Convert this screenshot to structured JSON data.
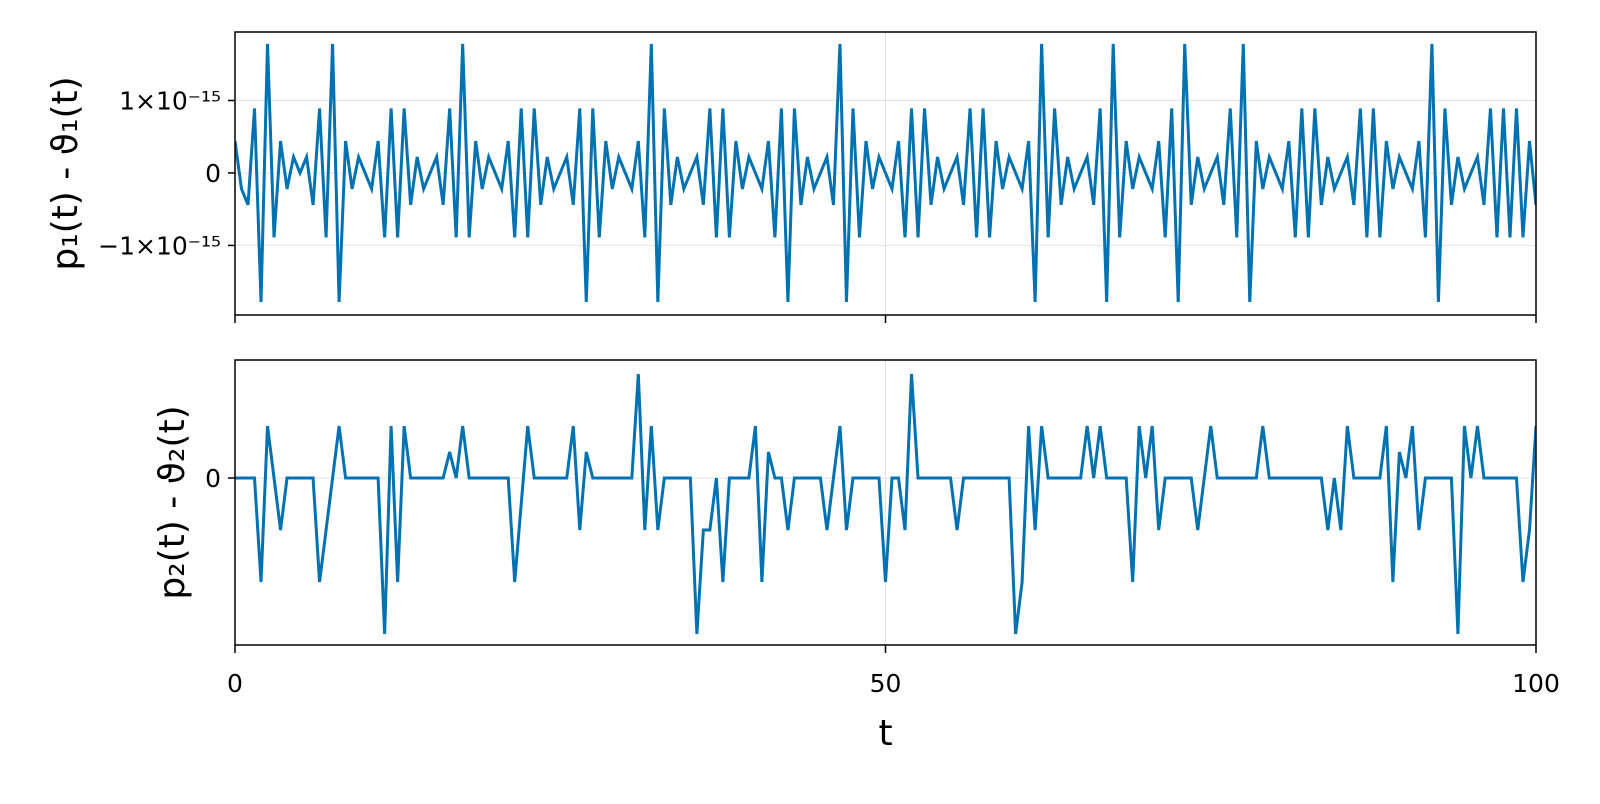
{
  "chart_data": [
    {
      "type": "line",
      "ylabel": "p₁(t) - ϑ₁(t)",
      "xlim": [
        0,
        100
      ],
      "xticks": [
        0,
        50,
        100
      ],
      "show_xtick_labels": false,
      "ylim": [
        -1.96e-15,
        1.945e-15
      ],
      "yticks": [
        {
          "value": -1e-15,
          "label": "−1×10⁻¹⁵"
        },
        0,
        {
          "value": 1e-15,
          "label": "1×10⁻¹⁵"
        }
      ],
      "grid": true,
      "x": [
        0,
        0.5,
        1,
        1.5,
        2,
        2.5,
        3,
        3.5,
        4,
        4.5,
        5,
        5.5,
        6,
        6.5,
        7,
        7.5,
        8,
        8.5,
        9,
        9.5,
        10,
        10.5,
        11,
        11.5,
        12,
        12.5,
        13,
        13.5,
        14,
        14.5,
        15,
        15.5,
        16,
        16.5,
        17,
        17.5,
        18,
        18.5,
        19,
        19.5,
        20,
        20.5,
        21,
        21.5,
        22,
        22.5,
        23,
        23.5,
        24,
        24.5,
        25,
        25.5,
        26,
        26.5,
        27,
        27.5,
        28,
        28.5,
        29,
        29.5,
        30,
        30.5,
        31,
        31.5,
        32,
        32.5,
        33,
        33.5,
        34,
        34.5,
        35,
        35.5,
        36,
        36.5,
        37,
        37.5,
        38,
        38.5,
        39,
        39.5,
        40,
        40.5,
        41,
        41.5,
        42,
        42.5,
        43,
        43.5,
        44,
        44.5,
        45,
        45.5,
        46,
        46.5,
        47,
        47.5,
        48,
        48.5,
        49,
        49.5,
        50,
        50.5,
        51,
        51.5,
        52,
        52.5,
        53,
        53.5,
        54,
        54.5,
        55,
        55.5,
        56,
        56.5,
        57,
        57.5,
        58,
        58.5,
        59,
        59.5,
        60,
        60.5,
        61,
        61.5,
        62,
        62.5,
        63,
        63.5,
        64,
        64.5,
        65,
        65.5,
        66,
        66.5,
        67,
        67.5,
        68,
        68.5,
        69,
        69.5,
        70,
        70.5,
        71,
        71.5,
        72,
        72.5,
        73,
        73.5,
        74,
        74.5,
        75,
        75.5,
        76,
        76.5,
        77,
        77.5,
        78,
        78.5,
        79,
        79.5,
        80,
        80.5,
        81,
        81.5,
        82,
        82.5,
        83,
        83.5,
        84,
        84.5,
        85,
        85.5,
        86,
        86.5,
        87,
        87.5,
        88,
        88.5,
        89,
        89.5,
        90,
        90.5,
        91,
        91.5,
        92,
        92.5,
        93,
        93.5,
        94,
        94.5,
        95,
        95.5,
        96,
        96.5,
        97,
        97.5,
        98,
        98.5,
        99,
        99.5,
        100
      ],
      "series": [
        {
          "color": "#0072b2",
          "values": [
            4.4e-16,
            -2.2e-16,
            -4.4e-16,
            8.9e-16,
            -1.78e-15,
            1.78e-15,
            -8.9e-16,
            4.4e-16,
            -2.2e-16,
            2.2e-16,
            0,
            2.2e-16,
            -4.4e-16,
            8.9e-16,
            -8.9e-16,
            1.78e-15,
            -1.78e-15,
            4.4e-16,
            -2.2e-16,
            2.2e-16,
            0,
            -2.2e-16,
            4.4e-16,
            -8.9e-16,
            8.9e-16,
            -8.9e-16,
            8.9e-16,
            -4.4e-16,
            2.2e-16,
            -2.2e-16,
            0,
            2.2e-16,
            -4.4e-16,
            8.9e-16,
            -8.9e-16,
            1.78e-15,
            -8.9e-16,
            4.4e-16,
            -2.2e-16,
            2.2e-16,
            0,
            -2.2e-16,
            4.4e-16,
            -8.9e-16,
            8.9e-16,
            -8.9e-16,
            8.9e-16,
            -4.4e-16,
            2.2e-16,
            -2.2e-16,
            0,
            2.2e-16,
            -4.4e-16,
            8.9e-16,
            -1.78e-15,
            8.9e-16,
            -8.9e-16,
            4.4e-16,
            -2.2e-16,
            2.2e-16,
            0,
            -2.2e-16,
            4.4e-16,
            -8.9e-16,
            1.78e-15,
            -1.78e-15,
            8.9e-16,
            -4.4e-16,
            2.2e-16,
            -2.2e-16,
            0,
            2.2e-16,
            -4.4e-16,
            8.9e-16,
            -8.9e-16,
            8.9e-16,
            -8.9e-16,
            4.4e-16,
            -2.2e-16,
            2.2e-16,
            0,
            -2.2e-16,
            4.4e-16,
            -8.9e-16,
            8.9e-16,
            -1.78e-15,
            8.9e-16,
            -4.4e-16,
            2.2e-16,
            -2.2e-16,
            0,
            2.2e-16,
            -4.4e-16,
            1.78e-15,
            -1.78e-15,
            8.9e-16,
            -8.9e-16,
            4.4e-16,
            -2.2e-16,
            2.2e-16,
            0,
            -2.2e-16,
            4.4e-16,
            -8.9e-16,
            8.9e-16,
            -8.9e-16,
            8.9e-16,
            -4.4e-16,
            2.2e-16,
            -2.2e-16,
            0,
            2.2e-16,
            -4.4e-16,
            8.9e-16,
            -8.9e-16,
            8.9e-16,
            -8.9e-16,
            4.4e-16,
            -2.2e-16,
            2.2e-16,
            0,
            -2.2e-16,
            4.4e-16,
            -1.78e-15,
            1.78e-15,
            -8.9e-16,
            8.9e-16,
            -4.4e-16,
            2.2e-16,
            -2.2e-16,
            0,
            2.2e-16,
            -4.4e-16,
            8.9e-16,
            -1.78e-15,
            1.78e-15,
            -8.9e-16,
            4.4e-16,
            -2.2e-16,
            2.2e-16,
            0,
            -2.2e-16,
            4.4e-16,
            -8.9e-16,
            8.9e-16,
            -1.78e-15,
            1.78e-15,
            -4.4e-16,
            2.2e-16,
            -2.2e-16,
            0,
            2.2e-16,
            -4.4e-16,
            8.9e-16,
            -8.9e-16,
            1.78e-15,
            -1.78e-15,
            4.4e-16,
            -2.2e-16,
            2.2e-16,
            0,
            -2.2e-16,
            4.4e-16,
            -8.9e-16,
            8.9e-16,
            -8.9e-16,
            8.9e-16,
            -4.4e-16,
            2.2e-16,
            -2.2e-16,
            0,
            2.2e-16,
            -4.4e-16,
            8.9e-16,
            -8.9e-16,
            8.9e-16,
            -8.9e-16,
            4.4e-16,
            -2.2e-16,
            2.2e-16,
            0,
            -2.2e-16,
            4.4e-16,
            -8.9e-16,
            1.78e-15,
            -1.78e-15,
            8.9e-16,
            -4.4e-16,
            2.2e-16,
            -2.2e-16,
            0,
            2.2e-16,
            -4.4e-16,
            8.9e-16,
            -8.9e-16,
            8.9e-16,
            -8.9e-16,
            8.9e-16,
            -8.9e-16,
            4.4e-16,
            -4.4e-16
          ]
        }
      ]
    },
    {
      "type": "line",
      "ylabel": "p₂(t) - ϑ₂(t)",
      "xlabel": "t",
      "xlim": [
        0,
        100
      ],
      "xticks": [
        0,
        50,
        100
      ],
      "show_xtick_labels": true,
      "ylim": [
        -7.13e-16,
        5.04e-16
      ],
      "yticks": [
        0
      ],
      "grid": true,
      "x": [
        0,
        0.5,
        1,
        1.5,
        2,
        2.5,
        3,
        3.5,
        4,
        4.5,
        5,
        5.5,
        6,
        6.5,
        7,
        7.5,
        8,
        8.5,
        9,
        9.5,
        10,
        10.5,
        11,
        11.5,
        12,
        12.5,
        13,
        13.5,
        14,
        14.5,
        15,
        15.5,
        16,
        16.5,
        17,
        17.5,
        18,
        18.5,
        19,
        19.5,
        20,
        20.5,
        21,
        21.5,
        22,
        22.5,
        23,
        23.5,
        24,
        24.5,
        25,
        25.5,
        26,
        26.5,
        27,
        27.5,
        28,
        28.5,
        29,
        29.5,
        30,
        30.5,
        31,
        31.5,
        32,
        32.5,
        33,
        33.5,
        34,
        34.5,
        35,
        35.5,
        36,
        36.5,
        37,
        37.5,
        38,
        38.5,
        39,
        39.5,
        40,
        40.5,
        41,
        41.5,
        42,
        42.5,
        43,
        43.5,
        44,
        44.5,
        45,
        45.5,
        46,
        46.5,
        47,
        47.5,
        48,
        48.5,
        49,
        49.5,
        50,
        50.5,
        51,
        51.5,
        52,
        52.5,
        53,
        53.5,
        54,
        54.5,
        55,
        55.5,
        56,
        56.5,
        57,
        57.5,
        58,
        58.5,
        59,
        59.5,
        60,
        60.5,
        61,
        61.5,
        62,
        62.5,
        63,
        63.5,
        64,
        64.5,
        65,
        65.5,
        66,
        66.5,
        67,
        67.5,
        68,
        68.5,
        69,
        69.5,
        70,
        70.5,
        71,
        71.5,
        72,
        72.5,
        73,
        73.5,
        74,
        74.5,
        75,
        75.5,
        76,
        76.5,
        77,
        77.5,
        78,
        78.5,
        79,
        79.5,
        80,
        80.5,
        81,
        81.5,
        82,
        82.5,
        83,
        83.5,
        84,
        84.5,
        85,
        85.5,
        86,
        86.5,
        87,
        87.5,
        88,
        88.5,
        89,
        89.5,
        90,
        90.5,
        91,
        91.5,
        92,
        92.5,
        93,
        93.5,
        94,
        94.5,
        95,
        95.5,
        96,
        96.5,
        97,
        97.5,
        98,
        98.5,
        99,
        99.5,
        100
      ],
      "series": [
        {
          "color": "#0072b2",
          "values": [
            0,
            0,
            0,
            0,
            -4.44e-16,
            2.22e-16,
            0,
            -2.22e-16,
            0,
            0,
            0,
            0,
            0,
            -4.44e-16,
            -2.22e-16,
            0,
            2.22e-16,
            0,
            0,
            0,
            0,
            0,
            0,
            -6.66e-16,
            2.22e-16,
            -4.44e-16,
            2.22e-16,
            0,
            0,
            0,
            0,
            0,
            0,
            1.11e-16,
            0,
            2.22e-16,
            0,
            0,
            0,
            0,
            0,
            0,
            0,
            -4.44e-16,
            -1.11e-16,
            2.22e-16,
            0,
            0,
            0,
            0,
            0,
            0,
            2.22e-16,
            -2.22e-16,
            1.11e-16,
            0,
            0,
            0,
            0,
            0,
            0,
            0,
            4.44e-16,
            -2.22e-16,
            2.22e-16,
            -2.22e-16,
            0,
            0,
            0,
            0,
            0,
            -6.66e-16,
            -2.22e-16,
            -2.22e-16,
            0,
            -4.44e-16,
            0,
            0,
            0,
            0,
            2.22e-16,
            -4.44e-16,
            1.11e-16,
            0,
            0,
            -2.22e-16,
            0,
            0,
            0,
            0,
            0,
            -2.22e-16,
            0,
            2.22e-16,
            -2.22e-16,
            0,
            0,
            0,
            0,
            0,
            -4.44e-16,
            0,
            0,
            -2.22e-16,
            4.44e-16,
            0,
            0,
            0,
            0,
            0,
            0,
            -2.22e-16,
            0,
            0,
            0,
            0,
            0,
            0,
            0,
            0,
            -6.66e-16,
            -4.44e-16,
            2.22e-16,
            -2.22e-16,
            2.22e-16,
            0,
            0,
            0,
            0,
            0,
            0,
            2.22e-16,
            0,
            2.22e-16,
            0,
            0,
            0,
            0,
            -4.44e-16,
            2.22e-16,
            0,
            2.22e-16,
            -2.22e-16,
            0,
            0,
            0,
            0,
            0,
            -2.22e-16,
            0,
            2.22e-16,
            0,
            0,
            0,
            0,
            0,
            0,
            0,
            2.22e-16,
            0,
            0,
            0,
            0,
            0,
            0,
            0,
            0,
            0,
            -2.22e-16,
            0,
            -2.22e-16,
            2.22e-16,
            0,
            0,
            0,
            0,
            0,
            2.22e-16,
            -4.44e-16,
            1.11e-16,
            0,
            2.22e-16,
            -2.22e-16,
            0,
            0,
            0,
            0,
            0,
            -6.66e-16,
            2.22e-16,
            0,
            2.22e-16,
            0,
            0,
            0,
            0,
            0,
            0,
            -4.44e-16,
            -2.22e-16,
            2.22e-16
          ]
        }
      ]
    }
  ]
}
